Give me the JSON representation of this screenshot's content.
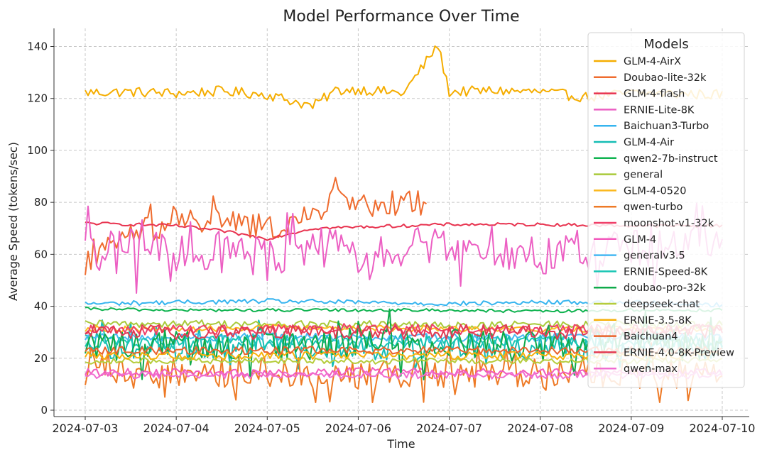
{
  "chart_data": {
    "type": "line",
    "title": "Model Performance Over Time",
    "xlabel": "Time",
    "ylabel": "Average Speed (tokens/sec)",
    "xlim": [
      "2024-07-03",
      "2024-07-10"
    ],
    "ylim": [
      0,
      145
    ],
    "x_ticks": [
      "2024-07-03",
      "2024-07-04",
      "2024-07-05",
      "2024-07-06",
      "2024-07-07",
      "2024-07-08",
      "2024-07-09",
      "2024-07-10"
    ],
    "y_ticks": [
      0,
      20,
      40,
      60,
      80,
      100,
      120,
      140
    ],
    "grid": true,
    "legend": {
      "title": "Models",
      "placement": "top-right"
    },
    "series": [
      {
        "name": "GLM-4-AirX",
        "color": "#f5ad00",
        "base": 122,
        "noise": 2,
        "spike": true,
        "end": "2024-07-10",
        "points": [
          [
            "2024-07-03",
            122.3
          ],
          [
            "2024-07-03T12:00",
            122.5
          ],
          [
            "2024-07-04",
            122.0
          ],
          [
            "2024-07-04T12:00",
            122.8
          ],
          [
            "2024-07-05",
            121.5
          ],
          [
            "2024-07-05T12:00",
            117.0
          ],
          [
            "2024-07-05T18:00",
            123.0
          ],
          [
            "2024-07-06",
            123.5
          ],
          [
            "2024-07-06T12:00",
            122.0
          ],
          [
            "2024-07-06T21:00",
            140.5
          ],
          [
            "2024-07-07",
            122.5
          ],
          [
            "2024-07-07T12:00",
            123.0
          ],
          [
            "2024-07-08",
            122.5
          ],
          [
            "2024-07-08T12:00",
            120.5
          ],
          [
            "2024-07-09",
            122.0
          ],
          [
            "2024-07-09T23:00",
            121.5
          ]
        ]
      },
      {
        "name": "Doubao-lite-32k",
        "color": "#ef6c2f",
        "base": 70,
        "noise": 5,
        "end": "2024-07-06T18:00",
        "points": [
          [
            "2024-07-03",
            56.0
          ],
          [
            "2024-07-03T12:00",
            68.0
          ],
          [
            "2024-07-04",
            72.0
          ],
          [
            "2024-07-04T12:00",
            73.0
          ],
          [
            "2024-07-05",
            70.0
          ],
          [
            "2024-07-05T12:00",
            74.0
          ],
          [
            "2024-07-05T18:00",
            85.0
          ],
          [
            "2024-07-06",
            78.0
          ],
          [
            "2024-07-06T12:00",
            80.0
          ],
          [
            "2024-07-06T18:00",
            80.0
          ]
        ]
      },
      {
        "name": "GLM-4-flash",
        "color": "#e8334f",
        "base": 71,
        "noise": 0.6,
        "end": "2024-07-10",
        "points": [
          [
            "2024-07-03",
            72.0
          ],
          [
            "2024-07-04",
            71.0
          ],
          [
            "2024-07-04T12:00",
            69.0
          ],
          [
            "2024-07-05",
            66.0
          ],
          [
            "2024-07-05T12:00",
            70.0
          ],
          [
            "2024-07-06",
            70.5
          ],
          [
            "2024-07-07",
            71.5
          ],
          [
            "2024-07-08",
            71.5
          ],
          [
            "2024-07-09",
            71.0
          ],
          [
            "2024-07-10",
            71.0
          ]
        ]
      },
      {
        "name": "ERNIE-Lite-8K",
        "color": "#ec5fc3",
        "base": 62,
        "noise": 8,
        "end": "2024-07-10",
        "points": [
          [
            "2024-07-03",
            60.0
          ],
          [
            "2024-07-03T12:00",
            62.0
          ],
          [
            "2024-07-04",
            60.0
          ],
          [
            "2024-07-04T12:00",
            62.0
          ],
          [
            "2024-07-05",
            58.0
          ],
          [
            "2024-07-05T12:00",
            63.0
          ],
          [
            "2024-07-06",
            60.0
          ],
          [
            "2024-07-06T12:00",
            64.0
          ],
          [
            "2024-07-07",
            62.0
          ],
          [
            "2024-07-07T12:00",
            63.0
          ],
          [
            "2024-07-08",
            60.0
          ],
          [
            "2024-07-08T12:00",
            62.0
          ],
          [
            "2024-07-09",
            62.0
          ],
          [
            "2024-07-10",
            64.0
          ]
        ]
      },
      {
        "name": "Baichuan3-Turbo",
        "color": "#36b4ef",
        "base": 41.5,
        "noise": 0.9,
        "end": "2024-07-10",
        "points": [
          [
            "2024-07-03",
            41.0
          ],
          [
            "2024-07-04",
            41.5
          ],
          [
            "2024-07-05",
            42.0
          ],
          [
            "2024-07-06",
            41.5
          ],
          [
            "2024-07-07",
            41.0
          ],
          [
            "2024-07-08",
            41.5
          ],
          [
            "2024-07-09",
            41.5
          ],
          [
            "2024-07-10",
            40.5
          ]
        ]
      },
      {
        "name": "GLM-4-Air",
        "color": "#15bdb5",
        "base": 25,
        "noise": 5,
        "end": "2024-07-10",
        "points": [
          [
            "2024-07-03",
            25.0
          ],
          [
            "2024-07-04",
            24.0
          ],
          [
            "2024-07-05",
            26.0
          ],
          [
            "2024-07-06",
            24.0
          ],
          [
            "2024-07-07",
            25.0
          ],
          [
            "2024-07-08",
            24.0
          ],
          [
            "2024-07-09",
            25.0
          ],
          [
            "2024-07-10",
            24.0
          ]
        ]
      },
      {
        "name": "qwen2-7b-instruct",
        "color": "#10b350",
        "base": 38.5,
        "noise": 0.6,
        "end": "2024-07-10",
        "points": [
          [
            "2024-07-03",
            39.0
          ],
          [
            "2024-07-04",
            38.5
          ],
          [
            "2024-07-05",
            38.5
          ],
          [
            "2024-07-06",
            38.5
          ],
          [
            "2024-07-07",
            38.5
          ],
          [
            "2024-07-08",
            38.0
          ],
          [
            "2024-07-09",
            38.5
          ],
          [
            "2024-07-10",
            38.5
          ]
        ]
      },
      {
        "name": "general",
        "color": "#a9c93a",
        "base": 33,
        "noise": 1.5,
        "end": "2024-07-10",
        "points": [
          [
            "2024-07-03",
            33.0
          ],
          [
            "2024-07-04",
            33.5
          ],
          [
            "2024-07-05",
            33.0
          ],
          [
            "2024-07-06",
            33.0
          ],
          [
            "2024-07-07",
            32.5
          ],
          [
            "2024-07-08",
            33.0
          ],
          [
            "2024-07-09",
            33.0
          ],
          [
            "2024-07-10",
            33.0
          ]
        ]
      },
      {
        "name": "GLM-4-0520",
        "color": "#fbb81e",
        "base": 31.5,
        "noise": 1.2,
        "end": "2024-07-10",
        "points": [
          [
            "2024-07-03",
            31.5
          ],
          [
            "2024-07-04",
            31.0
          ],
          [
            "2024-07-05",
            32.0
          ],
          [
            "2024-07-06",
            31.5
          ],
          [
            "2024-07-07",
            31.5
          ],
          [
            "2024-07-08",
            31.0
          ],
          [
            "2024-07-09",
            31.5
          ],
          [
            "2024-07-10",
            31.5
          ]
        ]
      },
      {
        "name": "qwen-turbo",
        "color": "#ee7a26",
        "base": 15,
        "noise": 6,
        "end": "2024-07-10",
        "points": [
          [
            "2024-07-03",
            15.0
          ],
          [
            "2024-07-04",
            14.0
          ],
          [
            "2024-07-05",
            15.0
          ],
          [
            "2024-07-06",
            14.0
          ],
          [
            "2024-07-07",
            14.0
          ],
          [
            "2024-07-08",
            15.0
          ],
          [
            "2024-07-09",
            14.0
          ],
          [
            "2024-07-10",
            14.0
          ]
        ]
      },
      {
        "name": "moonshot-v1-32k",
        "color": "#f03f69",
        "base": 31,
        "noise": 2,
        "end": "2024-07-10",
        "points": [
          [
            "2024-07-03",
            31.0
          ],
          [
            "2024-07-04",
            31.0
          ],
          [
            "2024-07-05",
            31.0
          ],
          [
            "2024-07-06",
            31.5
          ],
          [
            "2024-07-07",
            31.0
          ],
          [
            "2024-07-08",
            31.0
          ],
          [
            "2024-07-09",
            31.0
          ],
          [
            "2024-07-10",
            31.0
          ]
        ]
      },
      {
        "name": "GLM-4",
        "color": "#f25bbd",
        "base": 14.5,
        "noise": 1.5,
        "end": "2024-07-10",
        "points": [
          [
            "2024-07-03",
            14.5
          ],
          [
            "2024-07-04",
            14.5
          ],
          [
            "2024-07-05",
            14.0
          ],
          [
            "2024-07-06",
            15.0
          ],
          [
            "2024-07-07",
            14.5
          ],
          [
            "2024-07-08",
            14.5
          ],
          [
            "2024-07-09",
            14.5
          ],
          [
            "2024-07-10",
            14.5
          ]
        ]
      },
      {
        "name": "generalv3.5",
        "color": "#46b8f3",
        "base": 28,
        "noise": 1.5,
        "end": "2024-07-10",
        "points": [
          [
            "2024-07-03",
            28.0
          ],
          [
            "2024-07-04",
            28.0
          ],
          [
            "2024-07-05",
            28.5
          ],
          [
            "2024-07-06",
            28.0
          ],
          [
            "2024-07-07",
            28.0
          ],
          [
            "2024-07-08",
            28.0
          ],
          [
            "2024-07-09",
            28.0
          ],
          [
            "2024-07-10",
            28.0
          ]
        ]
      },
      {
        "name": "ERNIE-Speed-8K",
        "color": "#19c6b4",
        "base": 26,
        "noise": 2.5,
        "end": "2024-07-10",
        "points": [
          [
            "2024-07-03",
            26.0
          ],
          [
            "2024-07-04",
            26.0
          ],
          [
            "2024-07-05",
            26.5
          ],
          [
            "2024-07-06",
            26.0
          ],
          [
            "2024-07-07",
            26.0
          ],
          [
            "2024-07-08",
            26.0
          ],
          [
            "2024-07-09",
            26.0
          ],
          [
            "2024-07-10",
            26.0
          ]
        ]
      },
      {
        "name": "doubao-pro-32k",
        "color": "#0faa4a",
        "base": 25,
        "noise": 6,
        "end": "2024-07-10",
        "points": [
          [
            "2024-07-03",
            25.0
          ],
          [
            "2024-07-04",
            26.0
          ],
          [
            "2024-07-05",
            25.0
          ],
          [
            "2024-07-06",
            26.0
          ],
          [
            "2024-07-07",
            25.0
          ],
          [
            "2024-07-08",
            25.0
          ],
          [
            "2024-07-09",
            25.0
          ],
          [
            "2024-07-10",
            25.0
          ]
        ]
      },
      {
        "name": "deepseek-chat",
        "color": "#b6cc3c",
        "base": 19,
        "noise": 1.2,
        "end": "2024-07-10",
        "points": [
          [
            "2024-07-03",
            19.0
          ],
          [
            "2024-07-04",
            19.0
          ],
          [
            "2024-07-05",
            19.0
          ],
          [
            "2024-07-06",
            19.0
          ],
          [
            "2024-07-07",
            19.0
          ],
          [
            "2024-07-08",
            19.0
          ],
          [
            "2024-07-09",
            19.0
          ],
          [
            "2024-07-10",
            19.0
          ]
        ]
      },
      {
        "name": "ERNIE-3.5-8K",
        "color": "#f7b00c",
        "base": 21,
        "noise": 1.5,
        "end": "2024-07-10",
        "points": [
          [
            "2024-07-03",
            21.0
          ],
          [
            "2024-07-04",
            21.0
          ],
          [
            "2024-07-05",
            21.0
          ],
          [
            "2024-07-06",
            21.0
          ],
          [
            "2024-07-07",
            21.0
          ],
          [
            "2024-07-08",
            21.0
          ],
          [
            "2024-07-09",
            21.0
          ],
          [
            "2024-07-10",
            21.0
          ]
        ]
      },
      {
        "name": "Baichuan4",
        "color": "#e9632b",
        "base": 23,
        "noise": 1.5,
        "end": "2024-07-10",
        "points": [
          [
            "2024-07-03",
            23.0
          ],
          [
            "2024-07-04",
            23.0
          ],
          [
            "2024-07-05",
            23.0
          ],
          [
            "2024-07-06",
            23.0
          ],
          [
            "2024-07-07",
            23.0
          ],
          [
            "2024-07-08",
            23.0
          ],
          [
            "2024-07-09",
            23.0
          ],
          [
            "2024-07-10",
            23.0
          ]
        ]
      },
      {
        "name": "ERNIE-4.0-8K-Preview",
        "color": "#e23a51",
        "base": 30,
        "noise": 3,
        "end": "2024-07-10",
        "points": [
          [
            "2024-07-03",
            30.0
          ],
          [
            "2024-07-04",
            30.0
          ],
          [
            "2024-07-05",
            30.0
          ],
          [
            "2024-07-06",
            30.0
          ],
          [
            "2024-07-07",
            30.0
          ],
          [
            "2024-07-08",
            30.0
          ],
          [
            "2024-07-09",
            30.0
          ],
          [
            "2024-07-10",
            30.0
          ]
        ]
      },
      {
        "name": "qwen-max",
        "color": "#f06dd0",
        "base": 13.5,
        "noise": 1.5,
        "end": "2024-07-10",
        "points": [
          [
            "2024-07-03",
            13.5
          ],
          [
            "2024-07-04",
            13.5
          ],
          [
            "2024-07-05",
            13.5
          ],
          [
            "2024-07-06",
            13.5
          ],
          [
            "2024-07-07",
            13.5
          ],
          [
            "2024-07-08",
            13.5
          ],
          [
            "2024-07-09",
            13.5
          ],
          [
            "2024-07-10",
            13.5
          ]
        ]
      }
    ]
  }
}
